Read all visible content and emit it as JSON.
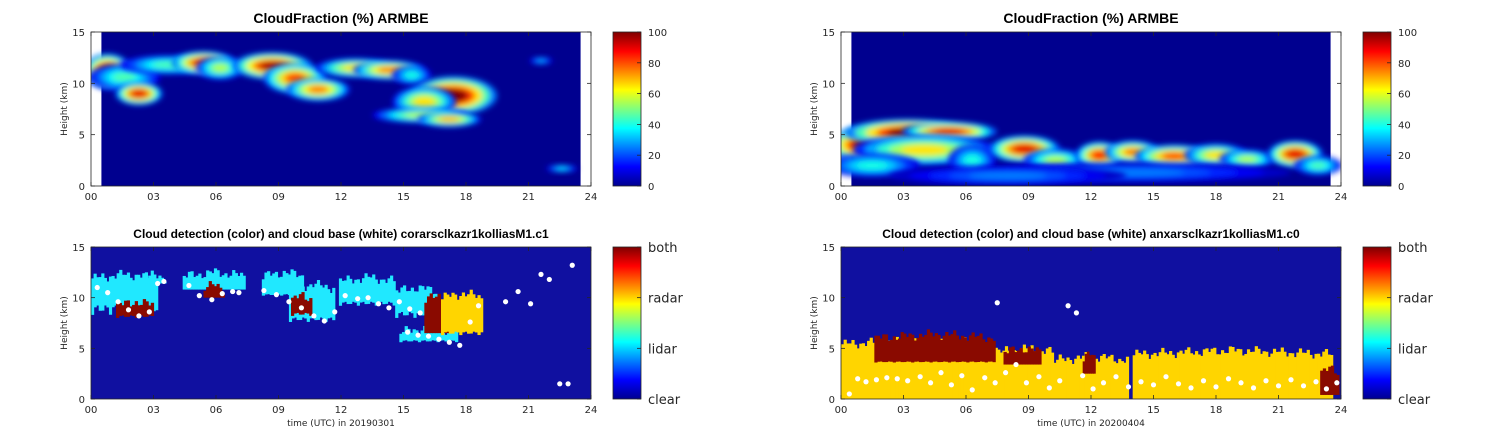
{
  "colors": {
    "jet": [
      "#00008f",
      "#0000ff",
      "#007fff",
      "#00ffff",
      "#7fff7f",
      "#ffff00",
      "#ff7f00",
      "#ff0000",
      "#7f0000"
    ],
    "background": "#1010a0",
    "cloudbase": "#ffffff"
  },
  "chart_data": [
    {
      "id": "cf_20190301",
      "type": "heatmap",
      "title": "CloudFraction  (%) ARMBE",
      "ylabel": "Height (km)",
      "xlabel": "",
      "xlim": [
        0,
        24
      ],
      "ylim": [
        0,
        15
      ],
      "xticks": [
        "00",
        "03",
        "06",
        "09",
        "12",
        "15",
        "18",
        "21",
        "24"
      ],
      "yticks": [
        "0",
        "5",
        "10",
        "15"
      ],
      "colorbar": {
        "range": [
          0,
          100
        ],
        "ticks": [
          "0",
          "20",
          "40",
          "60",
          "80",
          "100"
        ]
      },
      "data_xrange": [
        0.5,
        23.5
      ],
      "blobs": [
        {
          "t": 0.8,
          "h": 11.2,
          "rx": 0.6,
          "rh": 0.9,
          "v": 95
        },
        {
          "t": 1.6,
          "h": 10.6,
          "rx": 0.9,
          "rh": 0.7,
          "v": 45
        },
        {
          "t": 2.3,
          "h": 9.0,
          "rx": 0.6,
          "rh": 0.6,
          "v": 90
        },
        {
          "t": 3.7,
          "h": 11.8,
          "rx": 1.2,
          "rh": 0.5,
          "v": 45
        },
        {
          "t": 5.4,
          "h": 12.0,
          "rx": 0.8,
          "rh": 0.6,
          "v": 90
        },
        {
          "t": 6.2,
          "h": 11.5,
          "rx": 0.6,
          "rh": 0.6,
          "v": 55
        },
        {
          "t": 8.7,
          "h": 11.7,
          "rx": 1.0,
          "rh": 0.7,
          "v": 95
        },
        {
          "t": 9.8,
          "h": 10.5,
          "rx": 0.8,
          "rh": 0.8,
          "v": 80
        },
        {
          "t": 10.9,
          "h": 9.4,
          "rx": 0.8,
          "rh": 0.6,
          "v": 75
        },
        {
          "t": 12.7,
          "h": 11.5,
          "rx": 1.0,
          "rh": 0.5,
          "v": 65
        },
        {
          "t": 14.3,
          "h": 11.3,
          "rx": 0.9,
          "rh": 0.5,
          "v": 75
        },
        {
          "t": 15.4,
          "h": 10.8,
          "rx": 0.5,
          "rh": 0.5,
          "v": 40
        },
        {
          "t": 17.4,
          "h": 8.8,
          "rx": 1.1,
          "rh": 1.0,
          "v": 100
        },
        {
          "t": 16.0,
          "h": 8.2,
          "rx": 0.8,
          "rh": 0.8,
          "v": 65
        },
        {
          "t": 15.8,
          "h": 6.9,
          "rx": 1.2,
          "rh": 0.4,
          "v": 55
        },
        {
          "t": 17.2,
          "h": 6.5,
          "rx": 0.8,
          "rh": 0.4,
          "v": 70
        },
        {
          "t": 21.6,
          "h": 12.2,
          "rx": 0.3,
          "rh": 0.2,
          "v": 30
        },
        {
          "t": 22.6,
          "h": 1.7,
          "rx": 0.4,
          "rh": 0.2,
          "v": 35
        }
      ]
    },
    {
      "id": "cf_20200404",
      "type": "heatmap",
      "title": "CloudFraction  (%) ARMBE",
      "ylabel": "Height (km)",
      "xlabel": "",
      "xlim": [
        0,
        24
      ],
      "ylim": [
        0,
        15
      ],
      "xticks": [
        "00",
        "03",
        "06",
        "09",
        "12",
        "15",
        "18",
        "21",
        "24"
      ],
      "yticks": [
        "0",
        "5",
        "10",
        "15"
      ],
      "colorbar": {
        "range": [
          0,
          100
        ],
        "ticks": [
          "0",
          "20",
          "40",
          "60",
          "80",
          "100"
        ]
      },
      "data_xrange": [
        0.5,
        23.5
      ],
      "blobs": [
        {
          "t": 1.2,
          "h": 4.0,
          "rx": 1.0,
          "rh": 0.9,
          "v": 100
        },
        {
          "t": 3.2,
          "h": 5.2,
          "rx": 1.6,
          "rh": 0.7,
          "v": 100
        },
        {
          "t": 5.2,
          "h": 5.3,
          "rx": 1.2,
          "rh": 0.5,
          "v": 90
        },
        {
          "t": 4.0,
          "h": 3.5,
          "rx": 1.8,
          "rh": 0.8,
          "v": 65
        },
        {
          "t": 1.5,
          "h": 2.0,
          "rx": 1.2,
          "rh": 0.6,
          "v": 40
        },
        {
          "t": 6.3,
          "h": 2.5,
          "rx": 0.6,
          "rh": 0.8,
          "v": 40
        },
        {
          "t": 8.8,
          "h": 3.6,
          "rx": 0.9,
          "rh": 0.7,
          "v": 90
        },
        {
          "t": 10.3,
          "h": 2.5,
          "rx": 0.8,
          "rh": 0.6,
          "v": 55
        },
        {
          "t": 12.4,
          "h": 3.0,
          "rx": 0.6,
          "rh": 0.7,
          "v": 85
        },
        {
          "t": 14.0,
          "h": 3.3,
          "rx": 0.7,
          "rh": 0.6,
          "v": 75
        },
        {
          "t": 16.0,
          "h": 2.9,
          "rx": 1.0,
          "rh": 0.6,
          "v": 80
        },
        {
          "t": 18.0,
          "h": 3.0,
          "rx": 0.8,
          "rh": 0.6,
          "v": 65
        },
        {
          "t": 19.5,
          "h": 2.6,
          "rx": 0.7,
          "rh": 0.5,
          "v": 55
        },
        {
          "t": 21.8,
          "h": 3.1,
          "rx": 0.7,
          "rh": 0.7,
          "v": 90
        },
        {
          "t": 22.9,
          "h": 2.0,
          "rx": 0.6,
          "rh": 0.5,
          "v": 45
        },
        {
          "t": 14.0,
          "h": 1.3,
          "rx": 4.0,
          "rh": 0.5,
          "v": 25
        },
        {
          "t": 8.0,
          "h": 1.0,
          "rx": 3.0,
          "rh": 0.5,
          "v": 25
        }
      ]
    },
    {
      "id": "det_20190301",
      "type": "heatmap",
      "title": "Cloud detection (color) and cloud base (white) corarsclkazr1kolliasM1.c1",
      "ylabel": "Height (km)",
      "xlabel": "time (UTC) in 20190301",
      "xlim": [
        0,
        24
      ],
      "ylim": [
        0,
        15
      ],
      "xticks": [
        "00",
        "03",
        "06",
        "09",
        "12",
        "15",
        "18",
        "21",
        "24"
      ],
      "yticks": [
        "0",
        "5",
        "10",
        "15"
      ],
      "colorbar": {
        "categories": [
          "clear",
          "lidar",
          "radar",
          "both"
        ]
      },
      "segments": [
        {
          "t0": 0.0,
          "t1": 3.2,
          "h0": 10.2,
          "h1": 12.3,
          "h2": 8.3,
          "c": "cyan"
        },
        {
          "t0": 1.2,
          "t1": 3.0,
          "h0": 8.5,
          "h1": 9.6,
          "h2": 8.0,
          "c": "both"
        },
        {
          "t0": 2.5,
          "t1": 3.6,
          "h0": 11.4,
          "h1": 12.3,
          "h2": 11.4,
          "c": "cyan"
        },
        {
          "t0": 4.4,
          "t1": 7.4,
          "h0": 10.8,
          "h1": 12.5,
          "h2": 10.8,
          "c": "cyan"
        },
        {
          "t0": 5.4,
          "t1": 6.4,
          "h0": 10.0,
          "h1": 11.3,
          "h2": 10.0,
          "c": "both"
        },
        {
          "t0": 8.2,
          "t1": 10.2,
          "h0": 10.5,
          "h1": 12.5,
          "h2": 10.2,
          "c": "cyan"
        },
        {
          "t0": 9.5,
          "t1": 11.7,
          "h0": 8.5,
          "h1": 11.3,
          "h2": 7.6,
          "c": "cyan"
        },
        {
          "t0": 9.6,
          "t1": 10.6,
          "h0": 8.8,
          "h1": 10.2,
          "h2": 8.2,
          "c": "both"
        },
        {
          "t0": 11.9,
          "t1": 14.6,
          "h0": 10.0,
          "h1": 12.0,
          "h2": 9.2,
          "c": "cyan"
        },
        {
          "t0": 14.6,
          "t1": 16.6,
          "h0": 9.2,
          "h1": 11.0,
          "h2": 8.0,
          "c": "cyan"
        },
        {
          "t0": 14.8,
          "t1": 17.6,
          "h0": 6.0,
          "h1": 7.0,
          "h2": 5.6,
          "c": "cyan"
        },
        {
          "t0": 16.0,
          "t1": 17.4,
          "h0": 6.5,
          "h1": 10.2,
          "h2": 6.5,
          "c": "both"
        },
        {
          "t0": 16.8,
          "t1": 18.8,
          "h0": 7.0,
          "h1": 10.4,
          "h2": 6.3,
          "c": "radar"
        }
      ],
      "cloudbase": [
        [
          0.3,
          11.0
        ],
        [
          0.8,
          10.5
        ],
        [
          1.3,
          9.6
        ],
        [
          1.8,
          8.8
        ],
        [
          2.3,
          8.2
        ],
        [
          2.8,
          8.6
        ],
        [
          3.2,
          11.4
        ],
        [
          3.5,
          11.6
        ],
        [
          4.7,
          11.2
        ],
        [
          5.2,
          10.2
        ],
        [
          5.8,
          9.8
        ],
        [
          6.3,
          10.4
        ],
        [
          6.8,
          10.6
        ],
        [
          7.1,
          10.5
        ],
        [
          8.3,
          10.7
        ],
        [
          8.9,
          10.3
        ],
        [
          9.5,
          9.6
        ],
        [
          10.1,
          9.0
        ],
        [
          10.7,
          8.2
        ],
        [
          11.2,
          7.7
        ],
        [
          11.7,
          8.6
        ],
        [
          12.2,
          10.2
        ],
        [
          12.8,
          9.9
        ],
        [
          13.3,
          10.0
        ],
        [
          13.8,
          9.4
        ],
        [
          14.3,
          9.0
        ],
        [
          14.8,
          9.6
        ],
        [
          15.3,
          8.9
        ],
        [
          15.8,
          8.5
        ],
        [
          15.2,
          6.6
        ],
        [
          15.7,
          6.3
        ],
        [
          16.2,
          6.2
        ],
        [
          16.7,
          5.9
        ],
        [
          17.2,
          5.6
        ],
        [
          17.7,
          5.3
        ],
        [
          18.2,
          7.6
        ],
        [
          18.6,
          9.2
        ],
        [
          19.9,
          9.6
        ],
        [
          20.5,
          10.6
        ],
        [
          21.1,
          9.4
        ],
        [
          21.6,
          12.3
        ],
        [
          22.0,
          11.8
        ],
        [
          22.5,
          1.5
        ],
        [
          22.9,
          1.5
        ],
        [
          23.1,
          13.2
        ]
      ]
    },
    {
      "id": "det_20200404",
      "type": "heatmap",
      "title": "Cloud detection (color) and cloud base (white) anxarsclkazr1kolliasM1.c0",
      "ylabel": "Height (km)",
      "xlabel": "time (UTC) in 20200404",
      "xlim": [
        0,
        24
      ],
      "ylim": [
        0,
        15
      ],
      "xticks": [
        "00",
        "03",
        "06",
        "09",
        "12",
        "15",
        "18",
        "21",
        "24"
      ],
      "yticks": [
        "0",
        "5",
        "10",
        "15"
      ],
      "colorbar": {
        "categories": [
          "clear",
          "lidar",
          "radar",
          "both"
        ]
      },
      "segments": [
        {
          "t0": 0.0,
          "t1": 7.5,
          "h0": 0.0,
          "h1": 5.8,
          "h2": 0.0,
          "c": "radar"
        },
        {
          "t0": 1.6,
          "t1": 7.4,
          "h0": 3.8,
          "h1": 6.4,
          "h2": 3.6,
          "c": "both"
        },
        {
          "t0": 7.5,
          "t1": 10.2,
          "h0": 0.0,
          "h1": 5.0,
          "h2": 0.0,
          "c": "radar"
        },
        {
          "t0": 7.8,
          "t1": 9.6,
          "h0": 3.4,
          "h1": 5.0,
          "h2": 3.4,
          "c": "both"
        },
        {
          "t0": 10.2,
          "t1": 13.8,
          "h0": 0.0,
          "h1": 4.2,
          "h2": 0.0,
          "c": "radar"
        },
        {
          "t0": 11.6,
          "t1": 12.2,
          "h0": 2.5,
          "h1": 4.4,
          "h2": 2.5,
          "c": "both"
        },
        {
          "t0": 14.0,
          "t1": 23.6,
          "h0": 0.0,
          "h1": 4.8,
          "h2": 0.0,
          "c": "radar"
        },
        {
          "t0": 23.0,
          "t1": 23.9,
          "h0": 0.4,
          "h1": 3.0,
          "h2": 0.4,
          "c": "both"
        }
      ],
      "cloudbase": [
        [
          0.4,
          0.5
        ],
        [
          0.8,
          2.0
        ],
        [
          1.2,
          1.7
        ],
        [
          1.7,
          1.9
        ],
        [
          2.2,
          2.1
        ],
        [
          2.7,
          2.0
        ],
        [
          3.2,
          1.8
        ],
        [
          3.8,
          2.2
        ],
        [
          4.3,
          1.6
        ],
        [
          4.8,
          2.6
        ],
        [
          5.3,
          1.4
        ],
        [
          5.8,
          2.3
        ],
        [
          6.3,
          0.9
        ],
        [
          6.9,
          2.1
        ],
        [
          7.4,
          1.6
        ],
        [
          7.5,
          9.5
        ],
        [
          7.9,
          2.6
        ],
        [
          8.4,
          3.4
        ],
        [
          8.9,
          1.6
        ],
        [
          9.5,
          2.2
        ],
        [
          10.0,
          1.1
        ],
        [
          10.5,
          1.8
        ],
        [
          10.9,
          9.2
        ],
        [
          11.3,
          8.5
        ],
        [
          11.6,
          2.3
        ],
        [
          12.1,
          1.0
        ],
        [
          12.6,
          1.6
        ],
        [
          13.2,
          2.2
        ],
        [
          13.8,
          1.2
        ],
        [
          14.4,
          1.7
        ],
        [
          15.0,
          1.4
        ],
        [
          15.6,
          2.2
        ],
        [
          16.2,
          1.5
        ],
        [
          16.8,
          1.1
        ],
        [
          17.4,
          1.8
        ],
        [
          18.0,
          1.2
        ],
        [
          18.6,
          2.0
        ],
        [
          19.2,
          1.6
        ],
        [
          19.8,
          1.1
        ],
        [
          20.4,
          1.8
        ],
        [
          21.0,
          1.3
        ],
        [
          21.6,
          1.9
        ],
        [
          22.2,
          1.3
        ],
        [
          22.8,
          1.7
        ],
        [
          23.3,
          1.0
        ],
        [
          23.8,
          1.6
        ]
      ]
    }
  ]
}
